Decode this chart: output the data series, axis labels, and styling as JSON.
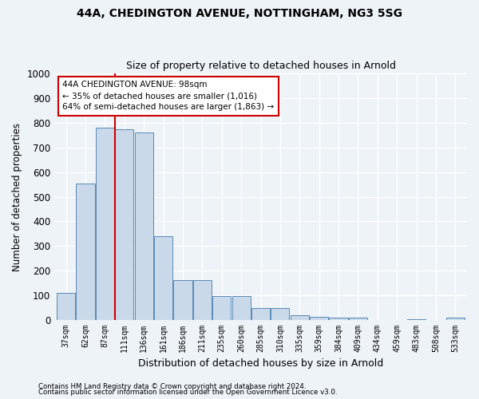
{
  "title1": "44A, CHEDINGTON AVENUE, NOTTINGHAM, NG3 5SG",
  "title2": "Size of property relative to detached houses in Arnold",
  "xlabel": "Distribution of detached houses by size in Arnold",
  "ylabel": "Number of detached properties",
  "bar_labels": [
    "37sqm",
    "62sqm",
    "87sqm",
    "111sqm",
    "136sqm",
    "161sqm",
    "186sqm",
    "211sqm",
    "235sqm",
    "260sqm",
    "285sqm",
    "310sqm",
    "335sqm",
    "359sqm",
    "384sqm",
    "409sqm",
    "434sqm",
    "459sqm",
    "483sqm",
    "508sqm",
    "533sqm"
  ],
  "bar_values": [
    110,
    555,
    780,
    775,
    760,
    340,
    162,
    162,
    97,
    97,
    50,
    50,
    18,
    13,
    10,
    10,
    0,
    0,
    5,
    0,
    10
  ],
  "bar_color": "#c9d9ea",
  "bar_edge_color": "#5a8ab5",
  "annotation_text": "44A CHEDINGTON AVENUE: 98sqm\n← 35% of detached houses are smaller (1,016)\n64% of semi-detached houses are larger (1,863) →",
  "annotation_box_color": "#ffffff",
  "annotation_box_edge": "#cc0000",
  "red_line_color": "#cc0000",
  "ylim": [
    0,
    1000
  ],
  "yticks": [
    0,
    100,
    200,
    300,
    400,
    500,
    600,
    700,
    800,
    900,
    1000
  ],
  "footer1": "Contains HM Land Registry data © Crown copyright and database right 2024.",
  "footer2": "Contains public sector information licensed under the Open Government Licence v3.0.",
  "bg_color": "#eef3f8",
  "grid_color": "#ffffff"
}
